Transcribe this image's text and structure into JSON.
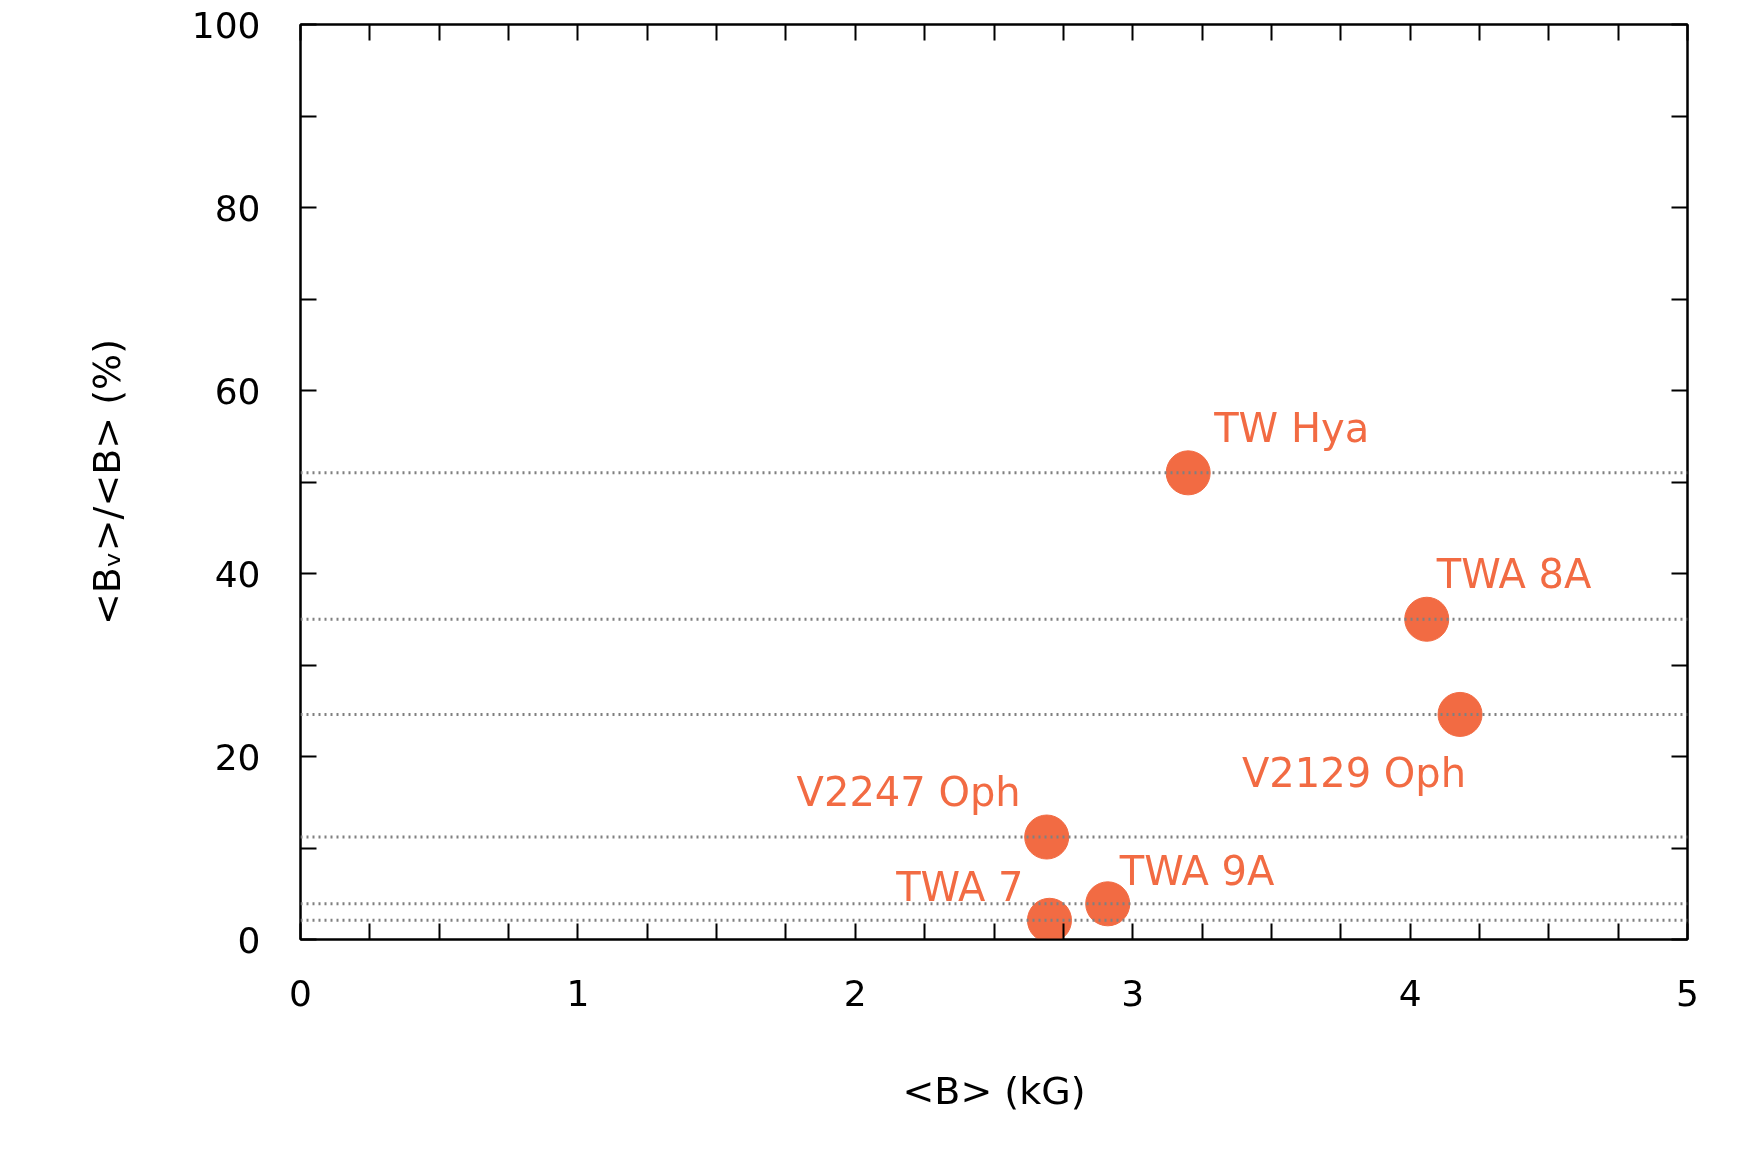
{
  "chart_data": {
    "type": "scatter",
    "xlabel": "<B> (kG)",
    "ylabel": "<Bᵥ>/<B> (%)",
    "x": [
      3.2,
      4.06,
      4.18,
      2.69,
      2.91,
      2.7
    ],
    "series": [
      {
        "color": "#f26b43",
        "values": [
          51,
          35,
          24.6,
          11.2,
          3.9,
          2.1
        ]
      }
    ],
    "marker": "circle",
    "xlim": [
      0,
      5
    ],
    "ylim": [
      0,
      100
    ],
    "xticks": [
      0,
      {
        "value": 0.25,
        "label": null
      },
      {
        "value": 0.5,
        "label": null
      },
      {
        "value": 0.75,
        "label": null
      },
      1,
      {
        "value": 1.25,
        "label": null
      },
      {
        "value": 1.5,
        "label": null
      },
      {
        "value": 1.75,
        "label": null
      },
      2,
      {
        "value": 2.25,
        "label": null
      },
      {
        "value": 2.5,
        "label": null
      },
      {
        "value": 2.75,
        "label": null
      },
      3,
      {
        "value": 3.25,
        "label": null
      },
      {
        "value": 3.5,
        "label": null
      },
      {
        "value": 3.75,
        "label": null
      },
      4,
      {
        "value": 4.25,
        "label": null
      },
      {
        "value": 4.5,
        "label": null
      },
      {
        "value": 4.75,
        "label": null
      },
      5
    ],
    "yticks": [
      0,
      {
        "value": 10,
        "label": null
      },
      20,
      {
        "value": 30,
        "label": null
      },
      40,
      {
        "value": 50,
        "label": null
      },
      60,
      {
        "value": 70,
        "label": null
      },
      80,
      {
        "value": 90,
        "label": null
      },
      100
    ],
    "ref_lines": [
      {
        "axis": "y",
        "value": 51,
        "color": "#808080",
        "line_style": "dotted"
      },
      {
        "axis": "y",
        "value": 35,
        "color": "#808080",
        "line_style": "dotted"
      },
      {
        "axis": "y",
        "value": 24.6,
        "color": "#808080",
        "line_style": "dotted"
      },
      {
        "axis": "y",
        "value": 11.2,
        "color": "#808080",
        "line_style": "dotted"
      },
      {
        "axis": "y",
        "value": 3.9,
        "color": "#808080",
        "line_style": "dotted"
      },
      {
        "axis": "y",
        "value": 2.1,
        "color": "#808080",
        "line_style": "dotted"
      }
    ],
    "annotations": [
      {
        "text": "TW Hya",
        "x": 3.2,
        "y": 51
      },
      {
        "text": "TWA 8A",
        "x": 4.06,
        "y": 35
      },
      {
        "text": "V2129 Oph",
        "x": 4.18,
        "y": 24.6
      },
      {
        "text": "V2247 Oph",
        "x": 2.69,
        "y": 11.2
      },
      {
        "text": "TWA 9A",
        "x": 2.91,
        "y": 3.9
      },
      {
        "text": "TWA 7",
        "x": 2.7,
        "y": 2.1
      }
    ],
    "grid": false
  }
}
